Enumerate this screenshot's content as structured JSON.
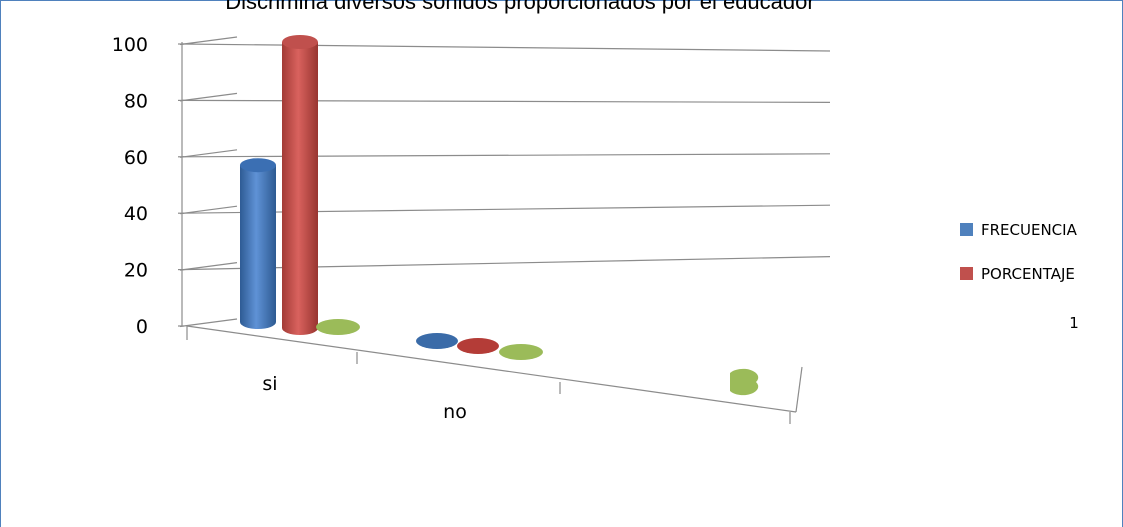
{
  "chart_data": {
    "type": "bar",
    "title": "Discrimina diversos sonidos proporcionados  por el educador",
    "categories": [
      "si",
      "no",
      ""
    ],
    "series": [
      {
        "name": "FRECUENCIA",
        "color": "#4f81bd",
        "values": [
          56,
          0,
          0
        ]
      },
      {
        "name": "PORCENTAJE",
        "color": "#c0504d",
        "values": [
          100,
          0,
          0
        ]
      },
      {
        "name": "1",
        "color": "#9bbb59",
        "values": [
          0,
          0,
          0
        ]
      }
    ],
    "yticks": [
      "0",
      "20",
      "40",
      "60",
      "80",
      "100"
    ],
    "ylim": [
      0,
      100
    ],
    "grid": true,
    "legend_position": "right"
  }
}
